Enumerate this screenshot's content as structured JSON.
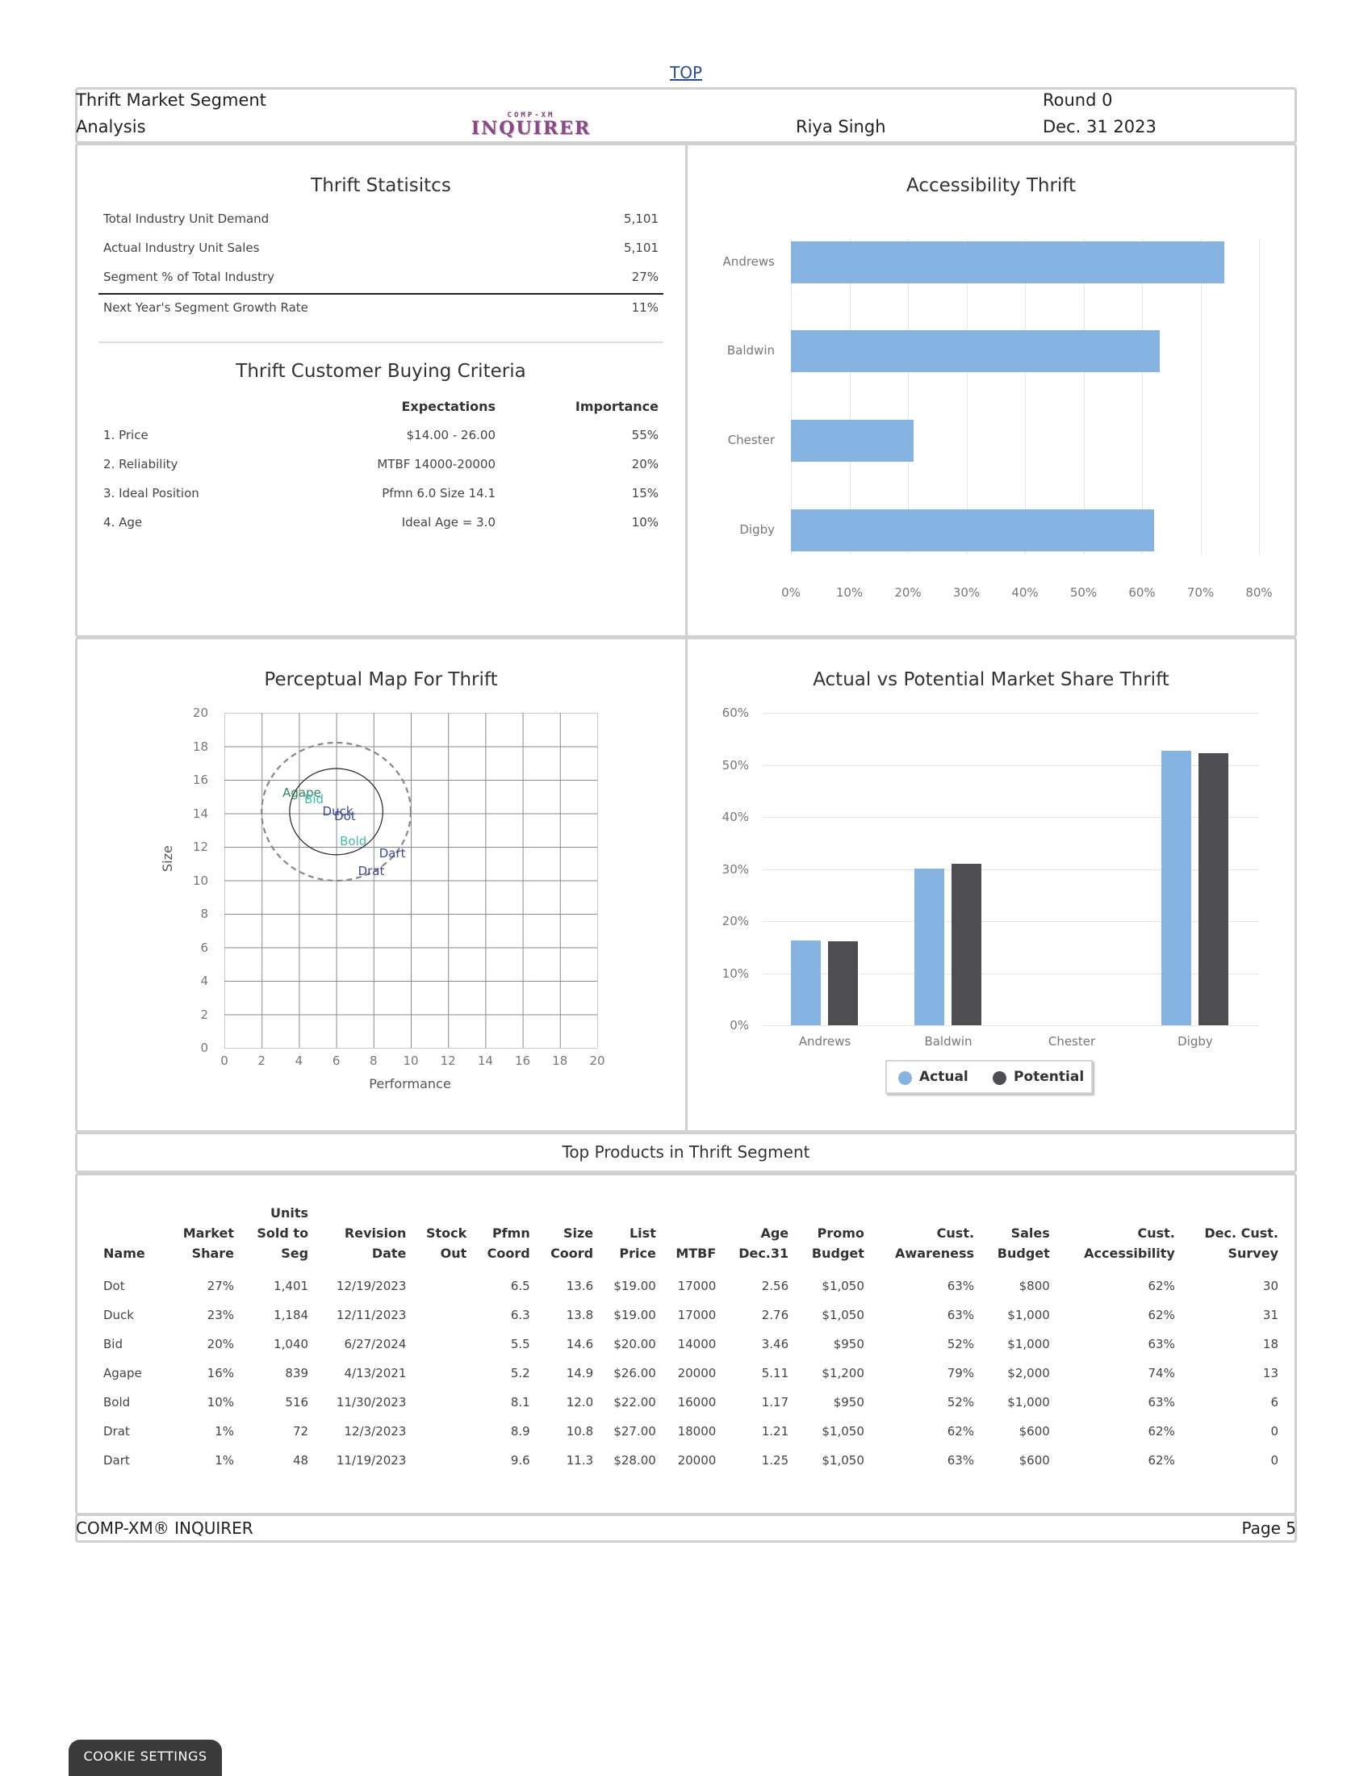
{
  "top_link": "TOP",
  "header": {
    "title_line1": "Thrift Market Segment",
    "title_line2": "Analysis",
    "logo_small": "COMP-XM",
    "logo_big": "INQUIRER",
    "user": "Riya Singh",
    "round": "Round 0",
    "date": "Dec. 31 2023"
  },
  "statistics": {
    "title": "Thrift Statisitcs",
    "rows": [
      {
        "label": "Total Industry Unit Demand",
        "value": "5,101"
      },
      {
        "label": "Actual Industry Unit Sales",
        "value": "5,101"
      },
      {
        "label": "Segment % of Total Industry",
        "value": "27%"
      },
      {
        "label": "Next Year's Segment Growth Rate",
        "value": "11%"
      }
    ]
  },
  "buying_criteria": {
    "title": "Thrift Customer Buying Criteria",
    "col_expectations": "Expectations",
    "col_importance": "Importance",
    "rows": [
      {
        "label": "1. Price",
        "expectation": "$14.00 - 26.00",
        "importance": "55%"
      },
      {
        "label": "2. Reliability",
        "expectation": "MTBF 14000-20000",
        "importance": "20%"
      },
      {
        "label": "3. Ideal Position",
        "expectation": "Pfmn 6.0 Size 14.1",
        "importance": "15%"
      },
      {
        "label": "4. Age",
        "expectation": "Ideal Age = 3.0",
        "importance": "10%"
      }
    ]
  },
  "chart_data": [
    {
      "type": "bar",
      "orientation": "horizontal",
      "title": "Accessibility Thrift",
      "categories": [
        "Andrews",
        "Baldwin",
        "Chester",
        "Digby"
      ],
      "values": [
        74,
        63,
        21,
        62
      ],
      "xlabel": "",
      "ylabel": "",
      "xlim": [
        0,
        80
      ],
      "x_ticks": [
        "0%",
        "10%",
        "20%",
        "30%",
        "40%",
        "50%",
        "60%",
        "70%",
        "80%"
      ],
      "color": "#85b4e2",
      "grid": true
    },
    {
      "type": "scatter",
      "title": "Perceptual Map For Thrift",
      "xlabel": "Performance",
      "ylabel": "Size",
      "xlim": [
        0,
        20
      ],
      "ylim": [
        0,
        20
      ],
      "x_ticks": [
        "0",
        "2",
        "4",
        "6",
        "8",
        "10",
        "12",
        "14",
        "16",
        "18",
        "20"
      ],
      "y_ticks": [
        "0",
        "2",
        "4",
        "6",
        "8",
        "10",
        "12",
        "14",
        "16",
        "18",
        "20"
      ],
      "grid": true,
      "points": [
        {
          "name": "Agape",
          "x": 5.2,
          "y": 14.9,
          "color": "#2e8b57"
        },
        {
          "name": "Bid",
          "x": 5.5,
          "y": 14.6,
          "color": "#3cbfb4"
        },
        {
          "name": "Duck",
          "x": 6.3,
          "y": 13.8,
          "color": "#3b4a8f"
        },
        {
          "name": "Dot",
          "x": 6.5,
          "y": 13.6,
          "color": "#3b4a8f"
        },
        {
          "name": "Bold",
          "x": 8.1,
          "y": 12.0,
          "color": "#3cbfb4"
        },
        {
          "name": "Dart",
          "x": 9.6,
          "y": 11.3,
          "color": "#3b4a8f"
        },
        {
          "name": "Drat",
          "x": 8.9,
          "y": 10.8,
          "color": "#3b4a8f"
        }
      ],
      "circles": [
        {
          "cx": 6.0,
          "cy": 14.1,
          "r": 2.5,
          "style": "solid"
        },
        {
          "cx": 6.0,
          "cy": 14.1,
          "r": 4.0,
          "style": "dashed"
        }
      ]
    },
    {
      "type": "bar",
      "title": "Actual vs Potential Market Share Thrift",
      "categories": [
        "Andrews",
        "Baldwin",
        "Chester",
        "Digby"
      ],
      "series": [
        {
          "name": "Actual",
          "values": [
            16.3,
            30.1,
            0,
            52.7
          ],
          "color": "#85b4e2"
        },
        {
          "name": "Potential",
          "values": [
            16.1,
            31.0,
            0,
            52.3
          ],
          "color": "#4d4d52"
        }
      ],
      "ylim": [
        0,
        60
      ],
      "y_ticks": [
        "0%",
        "10%",
        "20%",
        "30%",
        "40%",
        "50%",
        "60%"
      ],
      "legend_position": "bottom",
      "grid": true
    }
  ],
  "top_products": {
    "title": "Top Products in Thrift Segment",
    "headers": [
      [
        "",
        "",
        "Name"
      ],
      [
        "",
        "Market",
        "Share"
      ],
      [
        "Units",
        "Sold to",
        "Seg"
      ],
      [
        "",
        "Revision",
        "Date"
      ],
      [
        "",
        "Stock",
        "Out"
      ],
      [
        "",
        "Pfmn",
        "Coord"
      ],
      [
        "",
        "Size",
        "Coord"
      ],
      [
        "",
        "List",
        "Price"
      ],
      [
        "",
        "",
        "MTBF"
      ],
      [
        "",
        "Age",
        "Dec.31"
      ],
      [
        "",
        "Promo",
        "Budget"
      ],
      [
        "",
        "Cust.",
        "Awareness"
      ],
      [
        "",
        "Sales",
        "Budget"
      ],
      [
        "",
        "Cust.",
        "Accessibility"
      ],
      [
        "",
        "Dec. Cust.",
        "Survey"
      ]
    ],
    "rows": [
      [
        "Dot",
        "27%",
        "1,401",
        "12/19/2023",
        "",
        "6.5",
        "13.6",
        "$19.00",
        "17000",
        "2.56",
        "$1,050",
        "63%",
        "$800",
        "62%",
        "30"
      ],
      [
        "Duck",
        "23%",
        "1,184",
        "12/11/2023",
        "",
        "6.3",
        "13.8",
        "$19.00",
        "17000",
        "2.76",
        "$1,050",
        "63%",
        "$1,000",
        "62%",
        "31"
      ],
      [
        "Bid",
        "20%",
        "1,040",
        "6/27/2024",
        "",
        "5.5",
        "14.6",
        "$20.00",
        "14000",
        "3.46",
        "$950",
        "52%",
        "$1,000",
        "63%",
        "18"
      ],
      [
        "Agape",
        "16%",
        "839",
        "4/13/2021",
        "",
        "5.2",
        "14.9",
        "$26.00",
        "20000",
        "5.11",
        "$1,200",
        "79%",
        "$2,000",
        "74%",
        "13"
      ],
      [
        "Bold",
        "10%",
        "516",
        "11/30/2023",
        "",
        "8.1",
        "12.0",
        "$22.00",
        "16000",
        "1.17",
        "$950",
        "52%",
        "$1,000",
        "63%",
        "6"
      ],
      [
        "Drat",
        "1%",
        "72",
        "12/3/2023",
        "",
        "8.9",
        "10.8",
        "$27.00",
        "18000",
        "1.21",
        "$1,050",
        "62%",
        "$600",
        "62%",
        "0"
      ],
      [
        "Dart",
        "1%",
        "48",
        "11/19/2023",
        "",
        "9.6",
        "11.3",
        "$28.00",
        "20000",
        "1.25",
        "$1,050",
        "63%",
        "$600",
        "62%",
        "0"
      ]
    ]
  },
  "footer": {
    "brand": "COMP-XM® INQUIRER",
    "page": "Page 5"
  },
  "cookie_button": "COOKIE SETTINGS"
}
